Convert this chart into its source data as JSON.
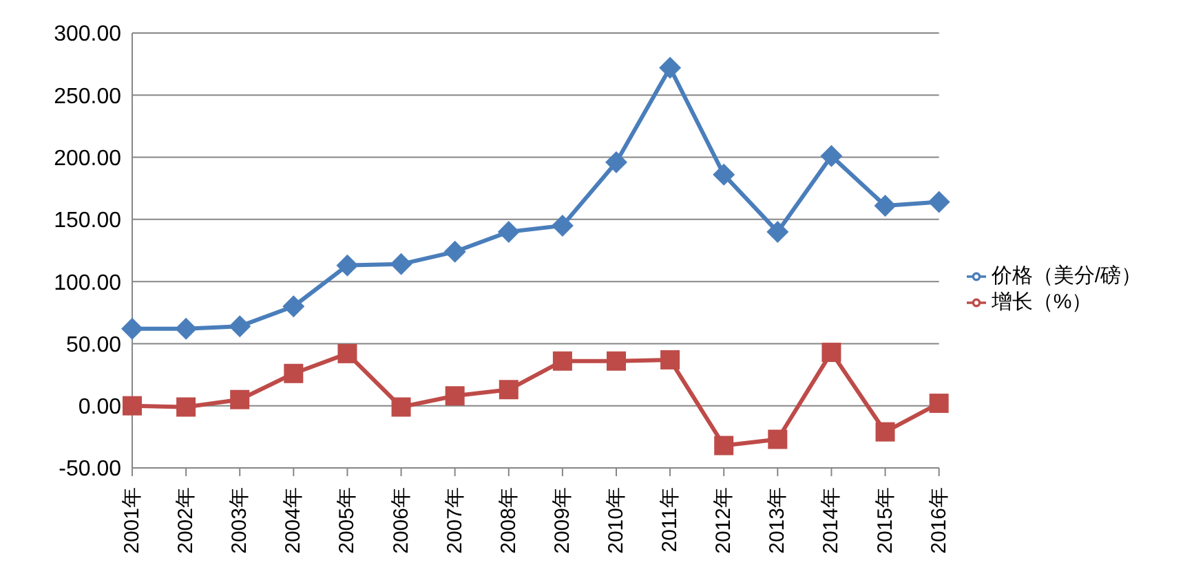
{
  "chart_data": {
    "type": "line",
    "categories": [
      "2001年",
      "2002年",
      "2003年",
      "2004年",
      "2005年",
      "2006年",
      "2007年",
      "2008年",
      "2009年",
      "2010年",
      "2011年",
      "2012年",
      "2013年",
      "2014年",
      "2015年",
      "2016年"
    ],
    "series": [
      {
        "name": "价格（美分/磅）",
        "color": "#4a7ebb",
        "marker": "diamond",
        "values": [
          62,
          62,
          64,
          80,
          113,
          114,
          124,
          140,
          145,
          196,
          272,
          186,
          140,
          201,
          161,
          164
        ]
      },
      {
        "name": "增长（%）",
        "color": "#be4b48",
        "marker": "square",
        "values": [
          0,
          -1,
          5,
          26,
          42,
          -1,
          8,
          13,
          36,
          36,
          37,
          -32,
          -27,
          43,
          -21,
          2
        ]
      }
    ],
    "ylim": [
      -50,
      300
    ],
    "yticks": [
      {
        "value": -50,
        "label": "-50.00"
      },
      {
        "value": 0,
        "label": "0.00"
      },
      {
        "value": 50,
        "label": "50.00"
      },
      {
        "value": 100,
        "label": "100.00"
      },
      {
        "value": 150,
        "label": "150.00"
      },
      {
        "value": 200,
        "label": "200.00"
      },
      {
        "value": 250,
        "label": "250.00"
      },
      {
        "value": 300,
        "label": "300.00"
      }
    ],
    "grid": "y",
    "legend": "right"
  }
}
